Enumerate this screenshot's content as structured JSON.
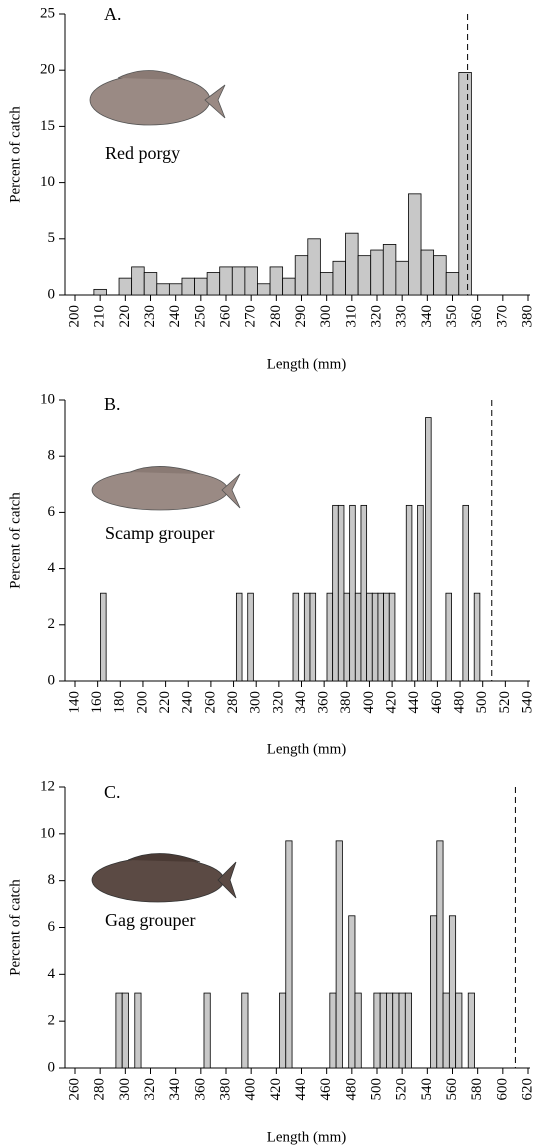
{
  "chart_data": [
    {
      "type": "bar",
      "panel_label": "A.",
      "species": "Red porgy",
      "xlabel": "Length (mm)",
      "ylabel": "Percent of catch",
      "color": "#c8c8c8",
      "x": [
        210,
        220,
        225,
        230,
        235,
        240,
        245,
        250,
        255,
        260,
        265,
        270,
        275,
        280,
        285,
        290,
        295,
        300,
        305,
        310,
        315,
        320,
        325,
        330,
        335,
        340,
        345,
        350,
        355
      ],
      "values": [
        0.5,
        1.5,
        2.5,
        2.0,
        1.0,
        1.0,
        1.5,
        1.5,
        2.0,
        2.5,
        2.5,
        2.5,
        1.0,
        2.5,
        1.5,
        3.5,
        5.0,
        2.0,
        3.0,
        5.5,
        3.5,
        4.0,
        4.5,
        3.0,
        9.0,
        4.0,
        3.5,
        2.0,
        19.8
      ],
      "xlim": [
        200,
        380
      ],
      "xticks": [
        200,
        210,
        220,
        230,
        240,
        250,
        260,
        270,
        280,
        290,
        300,
        310,
        320,
        330,
        340,
        350,
        360,
        370,
        380
      ],
      "ylim": [
        0,
        25
      ],
      "yticks": [
        0,
        5,
        10,
        15,
        20,
        25
      ],
      "reference_line": 356
    },
    {
      "type": "bar",
      "panel_label": "B.",
      "species": "Scamp grouper",
      "xlabel": "Length (mm)",
      "ylabel": "Percent of catch",
      "color": "#c8c8c8",
      "x": [
        165,
        285,
        295,
        335,
        345,
        350,
        365,
        370,
        375,
        380,
        385,
        390,
        395,
        400,
        405,
        410,
        415,
        420,
        435,
        445,
        452,
        470,
        485,
        495
      ],
      "values": [
        3.125,
        3.125,
        3.125,
        3.125,
        3.125,
        3.125,
        3.125,
        6.25,
        6.25,
        3.125,
        6.25,
        3.125,
        6.25,
        3.125,
        3.125,
        3.125,
        3.125,
        3.125,
        6.25,
        6.25,
        9.375,
        3.125,
        6.25,
        3.125
      ],
      "xlim": [
        140,
        540
      ],
      "xticks": [
        140,
        160,
        180,
        200,
        220,
        240,
        260,
        280,
        300,
        320,
        340,
        360,
        380,
        400,
        420,
        440,
        460,
        480,
        500,
        520,
        540
      ],
      "ylim": [
        0,
        10
      ],
      "yticks": [
        0,
        2,
        4,
        6,
        8,
        10
      ],
      "reference_line": 508
    },
    {
      "type": "bar",
      "panel_label": "C.",
      "species": "Gag grouper",
      "xlabel": "Length (mm)",
      "ylabel": "Percent of catch",
      "color": "#c8c8c8",
      "x": [
        295,
        300,
        310,
        365,
        395,
        425,
        430,
        465,
        470,
        480,
        485,
        500,
        505,
        510,
        515,
        520,
        525,
        545,
        550,
        555,
        560,
        565,
        575
      ],
      "values": [
        3.2,
        3.2,
        3.2,
        3.2,
        3.2,
        3.2,
        9.7,
        3.2,
        9.7,
        6.5,
        3.2,
        3.2,
        3.2,
        3.2,
        3.2,
        3.2,
        3.2,
        6.5,
        9.7,
        3.2,
        6.5,
        3.2,
        3.2
      ],
      "xlim": [
        260,
        620
      ],
      "xticks": [
        260,
        280,
        300,
        320,
        340,
        360,
        380,
        400,
        420,
        440,
        460,
        480,
        500,
        520,
        540,
        560,
        580,
        600,
        620
      ],
      "ylim": [
        0,
        12
      ],
      "yticks": [
        0,
        2,
        4,
        6,
        8,
        10,
        12
      ],
      "reference_line": 610
    }
  ]
}
